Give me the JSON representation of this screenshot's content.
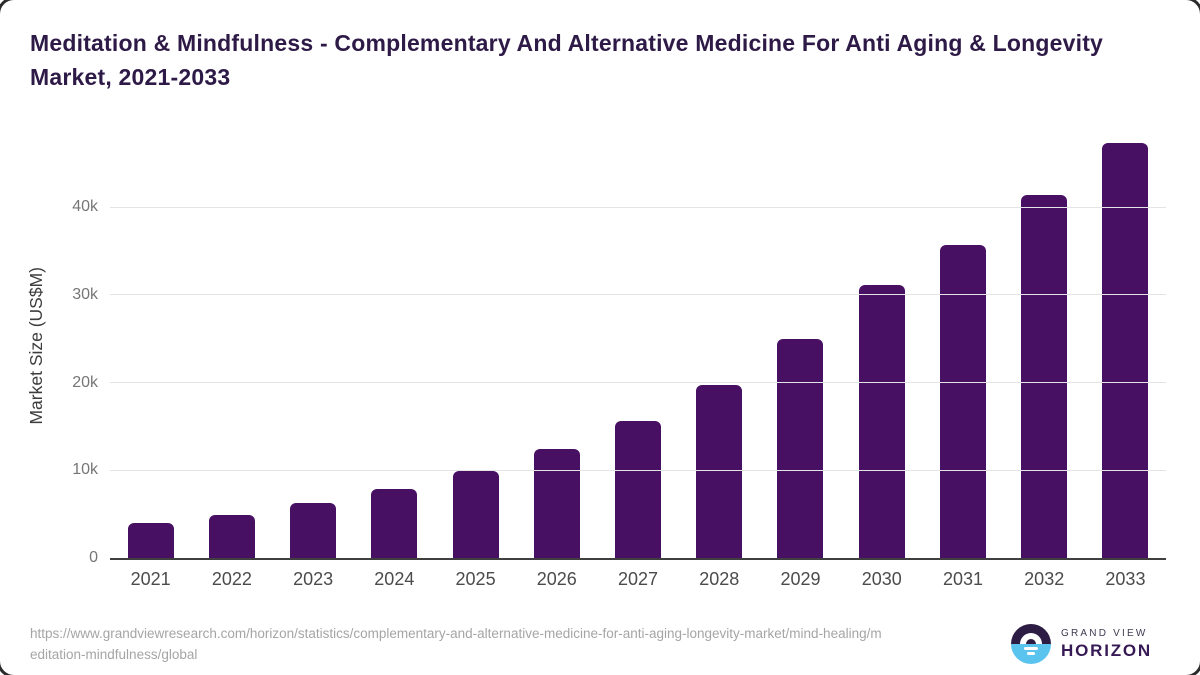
{
  "title": "Meditation & Mindfulness - Complementary And Alternative Medicine For Anti Aging & Longevity Market, 2021-2033",
  "chart_data": {
    "type": "bar",
    "title": "Meditation & Mindfulness - Complementary And Alternative Medicine For Anti Aging & Longevity Market, 2021-2033",
    "categories": [
      "2021",
      "2022",
      "2023",
      "2024",
      "2025",
      "2026",
      "2027",
      "2028",
      "2029",
      "2030",
      "2031",
      "2032",
      "2033"
    ],
    "values": [
      4000,
      4950,
      6300,
      7900,
      9950,
      12400,
      15600,
      19750,
      24950,
      31100,
      35750,
      41400,
      47350
    ],
    "xlabel": "",
    "ylabel": "Market Size (US$M)",
    "ylim": [
      0,
      48350
    ],
    "y_ticks": [
      {
        "label": "0",
        "value": 0
      },
      {
        "label": "10k",
        "value": 10000
      },
      {
        "label": "20k",
        "value": 20000
      },
      {
        "label": "30k",
        "value": 30000
      },
      {
        "label": "40k",
        "value": 40000
      }
    ],
    "grid": true,
    "legend": false
  },
  "footer": {
    "source_url": "https://www.grandviewresearch.com/horizon/statistics/complementary-and-alternative-medicine-for-anti-aging-longevity-market/mind-healing/meditation-mindfulness/global",
    "logo": {
      "line1": "GRAND VIEW",
      "line2": "HORIZON"
    }
  },
  "colors": {
    "title_color": "#2e1a47",
    "bar_color": "#481062",
    "tick_color": "#767676",
    "gridline_color": "#e4e4e4",
    "baseline_color": "#3f3f3f",
    "url_color": "#a5a5a5",
    "logo_dark": "#2d1c44",
    "logo_blue": "#5ac4ef"
  }
}
